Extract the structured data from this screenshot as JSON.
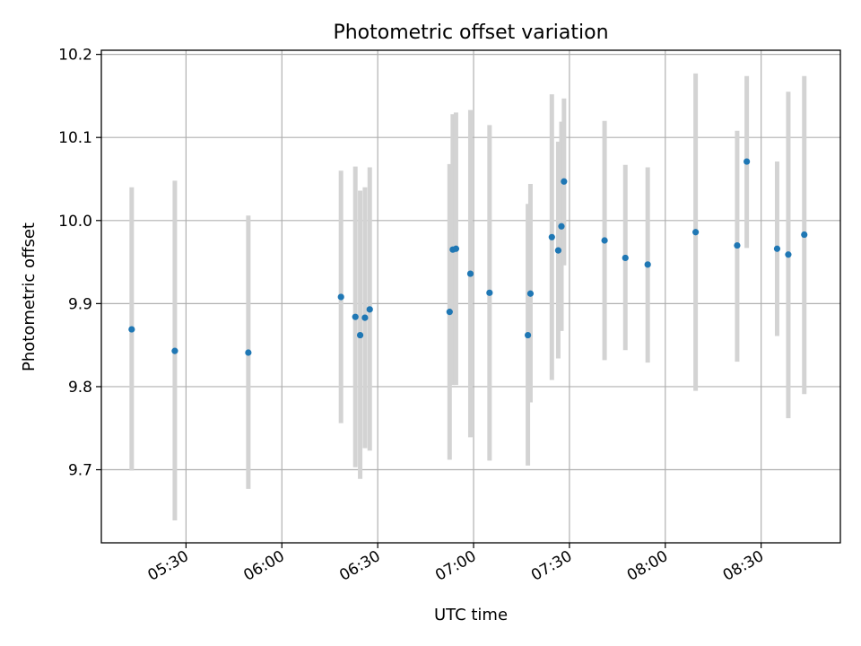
{
  "chart_data": {
    "type": "scatter",
    "title": "Photometric offset variation",
    "xlabel": "UTC time",
    "ylabel": "Photometric offset",
    "x_tick_labels": [
      "05:30",
      "06:00",
      "06:30",
      "07:00",
      "07:30",
      "08:00",
      "08:30"
    ],
    "x_ticks_minutes": [
      330,
      360,
      390,
      420,
      450,
      480,
      510
    ],
    "y_tick_labels": [
      "9.7",
      "9.8",
      "9.9",
      "10.0",
      "10.1",
      "10.2"
    ],
    "y_ticks": [
      9.7,
      9.8,
      9.9,
      10.0,
      10.1,
      10.2
    ],
    "xlim_minutes": [
      303.5,
      534.8
    ],
    "ylim": [
      9.612,
      10.205
    ],
    "grid": true,
    "colors": {
      "point": "#1f77b4",
      "error_bar": "#d3d3d3",
      "grid": "#b0b0b0"
    },
    "points": [
      {
        "t": 313.0,
        "y": 9.869,
        "ylo": 9.699,
        "yhi": 10.04
      },
      {
        "t": 326.5,
        "y": 9.843,
        "ylo": 9.639,
        "yhi": 10.048
      },
      {
        "t": 349.5,
        "y": 9.841,
        "ylo": 9.677,
        "yhi": 10.006
      },
      {
        "t": 378.5,
        "y": 9.908,
        "ylo": 9.756,
        "yhi": 10.06
      },
      {
        "t": 383.0,
        "y": 9.884,
        "ylo": 9.703,
        "yhi": 10.065
      },
      {
        "t": 384.5,
        "y": 9.862,
        "ylo": 9.689,
        "yhi": 10.036
      },
      {
        "t": 386.0,
        "y": 9.883,
        "ylo": 9.726,
        "yhi": 10.04
      },
      {
        "t": 387.5,
        "y": 9.893,
        "ylo": 9.723,
        "yhi": 10.064
      },
      {
        "t": 412.5,
        "y": 9.89,
        "ylo": 9.712,
        "yhi": 10.068
      },
      {
        "t": 413.5,
        "y": 9.965,
        "ylo": 9.802,
        "yhi": 10.128
      },
      {
        "t": 414.5,
        "y": 9.966,
        "ylo": 9.802,
        "yhi": 10.13
      },
      {
        "t": 419.0,
        "y": 9.936,
        "ylo": 9.739,
        "yhi": 10.133
      },
      {
        "t": 425.0,
        "y": 9.913,
        "ylo": 9.711,
        "yhi": 10.115
      },
      {
        "t": 437.0,
        "y": 9.862,
        "ylo": 9.705,
        "yhi": 10.02
      },
      {
        "t": 437.8,
        "y": 9.912,
        "ylo": 9.781,
        "yhi": 10.044
      },
      {
        "t": 444.5,
        "y": 9.98,
        "ylo": 9.808,
        "yhi": 10.152
      },
      {
        "t": 446.5,
        "y": 9.964,
        "ylo": 9.834,
        "yhi": 10.095
      },
      {
        "t": 447.5,
        "y": 9.993,
        "ylo": 9.867,
        "yhi": 10.119
      },
      {
        "t": 448.3,
        "y": 10.047,
        "ylo": 9.946,
        "yhi": 10.147
      },
      {
        "t": 461.0,
        "y": 9.976,
        "ylo": 9.832,
        "yhi": 10.12
      },
      {
        "t": 467.5,
        "y": 9.955,
        "ylo": 9.844,
        "yhi": 10.067
      },
      {
        "t": 474.5,
        "y": 9.947,
        "ylo": 9.829,
        "yhi": 10.064
      },
      {
        "t": 489.5,
        "y": 9.986,
        "ylo": 9.795,
        "yhi": 10.177
      },
      {
        "t": 502.5,
        "y": 9.97,
        "ylo": 9.83,
        "yhi": 10.108
      },
      {
        "t": 505.5,
        "y": 10.071,
        "ylo": 9.967,
        "yhi": 10.174
      },
      {
        "t": 515.0,
        "y": 9.966,
        "ylo": 9.861,
        "yhi": 10.071
      },
      {
        "t": 518.5,
        "y": 9.959,
        "ylo": 9.762,
        "yhi": 10.155
      },
      {
        "t": 523.5,
        "y": 9.983,
        "ylo": 9.791,
        "yhi": 10.174
      }
    ]
  }
}
